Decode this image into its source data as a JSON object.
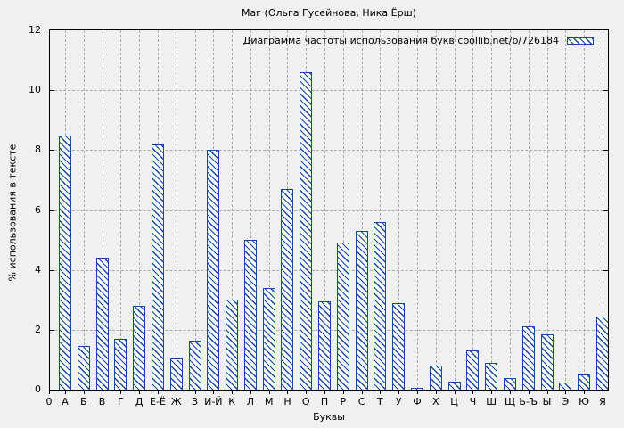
{
  "chart_data": {
    "type": "bar",
    "title": "Маг (Ольга Гусейнова, Ника Ёрш)",
    "legend": "Диаграмма частоты использования букв coollib.net/b/726184",
    "legend_position": "top-right",
    "xlabel": "Буквы",
    "ylabel": "% использования в тексте",
    "x_origin_label": "0",
    "categories": [
      "А",
      "Б",
      "В",
      "Г",
      "Д",
      "Е-Ё",
      "Ж",
      "З",
      "И-Й",
      "К",
      "Л",
      "М",
      "Н",
      "О",
      "П",
      "Р",
      "С",
      "Т",
      "У",
      "Ф",
      "Х",
      "Ц",
      "Ч",
      "Ш",
      "Щ",
      "Ь-Ъ",
      "Ы",
      "Э",
      "Ю",
      "Я"
    ],
    "values": [
      8.5,
      1.45,
      4.4,
      1.7,
      2.8,
      8.2,
      1.05,
      1.65,
      8.0,
      3.0,
      5.0,
      3.4,
      6.7,
      10.6,
      2.95,
      4.9,
      5.3,
      5.6,
      2.9,
      0.05,
      0.8,
      0.27,
      1.3,
      0.9,
      0.4,
      2.1,
      1.85,
      0.25,
      0.5,
      2.45
    ],
    "ylim": [
      0,
      12
    ],
    "yticks": [
      0,
      2,
      4,
      6,
      8,
      10,
      12
    ],
    "grid": true,
    "bar_color": "#1547a3",
    "background_color": "#f0f0f0",
    "grid_color": "#a9a9a9",
    "frame_color": "#000000"
  }
}
